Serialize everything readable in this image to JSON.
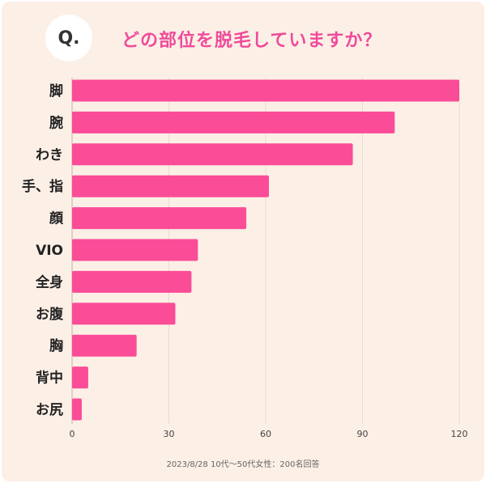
{
  "header": {
    "q_label": "Q.",
    "title": "どの部位を脱毛していますか？"
  },
  "footnote": "2023/8/28 10代〜50代女性：200名回答",
  "colors": {
    "bar": "#fb4c97",
    "title": "#ef4b9a",
    "background": "#fcefe6",
    "grid": "#e6dcd6"
  },
  "chart_data": {
    "type": "bar",
    "orientation": "horizontal",
    "categories": [
      "脚",
      "腕",
      "わき",
      "手、指",
      "顔",
      "VIO",
      "全身",
      "お腹",
      "胸",
      "背中",
      "お尻"
    ],
    "values": [
      120,
      100,
      87,
      61,
      54,
      39,
      37,
      32,
      20,
      5,
      3
    ],
    "xlim": [
      0,
      120
    ],
    "xticks": [
      "0",
      "30",
      "60",
      "90",
      "120"
    ],
    "grid": true,
    "legend": "none"
  }
}
